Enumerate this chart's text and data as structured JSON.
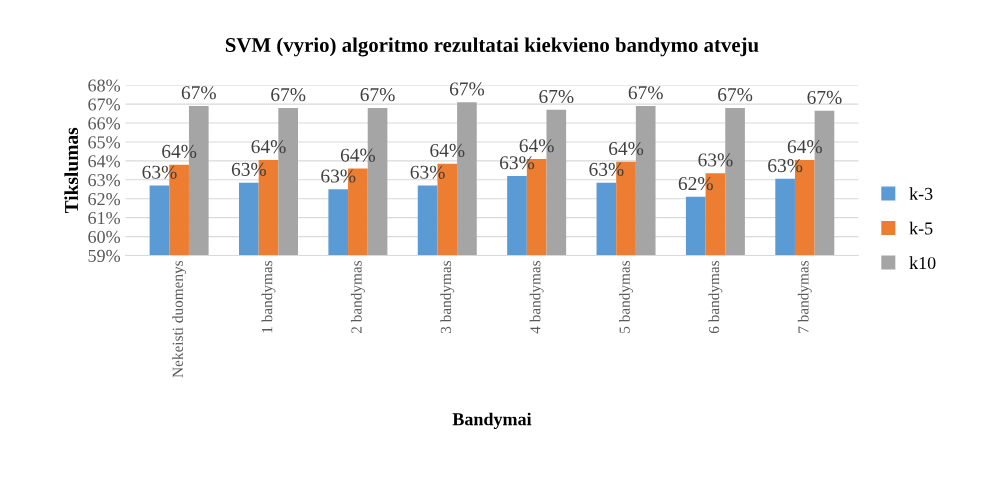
{
  "chart_data": {
    "type": "bar",
    "title": "SVM (vyrio) algoritmo rezultatai kiekvieno bandymo atveju",
    "xlabel": "Bandymai",
    "ylabel": "Tikslumas",
    "categories": [
      "Nekeisti duomenys",
      "1 bandymas",
      "2 bandymas",
      "3 bandymas",
      "4 bandymas",
      "5 bandymas",
      "6 bandymas",
      "7 bandymas"
    ],
    "series": [
      {
        "name": "k-3",
        "color": "#5b9bd5",
        "values": [
          62.7,
          62.85,
          62.5,
          62.7,
          63.2,
          62.85,
          62.1,
          63.05
        ],
        "value_labels": [
          "63%",
          "63%",
          "63%",
          "63%",
          "63%",
          "63%",
          "62%",
          "63%"
        ]
      },
      {
        "name": "k-5",
        "color": "#ed7d31",
        "values": [
          63.8,
          64.05,
          63.6,
          63.85,
          64.1,
          63.95,
          63.35,
          64.05
        ],
        "value_labels": [
          "64%",
          "64%",
          "64%",
          "64%",
          "64%",
          "64%",
          "63%",
          "64%"
        ]
      },
      {
        "name": "k10",
        "color": "#a5a5a5",
        "values": [
          66.9,
          66.8,
          66.8,
          67.1,
          66.7,
          66.9,
          66.8,
          66.65
        ],
        "value_labels": [
          "67%",
          "67%",
          "67%",
          "67%",
          "67%",
          "67%",
          "67%",
          "67%"
        ]
      }
    ],
    "ylim": [
      59,
      68
    ],
    "yticks": [
      {
        "value": 59,
        "label": "59%"
      },
      {
        "value": 60,
        "label": "60%"
      },
      {
        "value": 61,
        "label": "61%"
      },
      {
        "value": 62,
        "label": "62%"
      },
      {
        "value": 63,
        "label": "63%"
      },
      {
        "value": 64,
        "label": "64%"
      },
      {
        "value": 65,
        "label": "65%"
      },
      {
        "value": 66,
        "label": "66%"
      },
      {
        "value": 67,
        "label": "67%"
      },
      {
        "value": 68,
        "label": "68%"
      }
    ],
    "grid": "y",
    "legend": "right"
  }
}
